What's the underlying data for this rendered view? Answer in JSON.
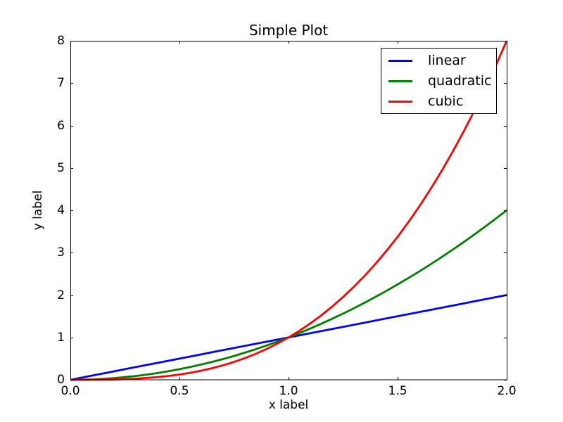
{
  "figure": {
    "background": "#ffffff",
    "spine_color": "#000000",
    "text_color": "#000000"
  },
  "chart_data": {
    "type": "line",
    "title": "Simple Plot",
    "xlabel": "x label",
    "ylabel": "y label",
    "xlim": [
      0.0,
      2.0
    ],
    "ylim": [
      0,
      8
    ],
    "grid": false,
    "x_ticks": [
      "0.0",
      "0.5",
      "1.0",
      "1.5",
      "2.0"
    ],
    "x_tick_values": [
      0,
      0.5,
      1,
      1.5,
      2
    ],
    "y_ticks": [
      "0",
      "1",
      "2",
      "3",
      "4",
      "5",
      "6",
      "7",
      "8"
    ],
    "y_tick_values": [
      0,
      1,
      2,
      3,
      4,
      5,
      6,
      7,
      8
    ],
    "legend": {
      "position": "upper right",
      "entries": [
        "linear",
        "quadratic",
        "cubic"
      ]
    },
    "x": [
      0,
      0.05,
      0.1,
      0.15,
      0.2,
      0.25,
      0.3,
      0.35,
      0.4,
      0.45,
      0.5,
      0.55,
      0.6,
      0.65,
      0.7,
      0.75,
      0.8,
      0.85,
      0.9,
      0.95,
      1,
      1.05,
      1.1,
      1.15,
      1.2,
      1.25,
      1.3,
      1.35,
      1.4,
      1.45,
      1.5,
      1.55,
      1.6,
      1.65,
      1.7,
      1.75,
      1.8,
      1.85,
      1.9,
      1.95,
      2
    ],
    "series": [
      {
        "name": "linear",
        "color": "#0000ff",
        "values": [
          0,
          0.05,
          0.1,
          0.15,
          0.2,
          0.25,
          0.3,
          0.35,
          0.4,
          0.45,
          0.5,
          0.55,
          0.6,
          0.65,
          0.7,
          0.75,
          0.8,
          0.85,
          0.9,
          0.95,
          1,
          1.05,
          1.1,
          1.15,
          1.2,
          1.25,
          1.3,
          1.35,
          1.4,
          1.45,
          1.5,
          1.55,
          1.6,
          1.65,
          1.7,
          1.75,
          1.8,
          1.85,
          1.9,
          1.95,
          2
        ]
      },
      {
        "name": "quadratic",
        "color": "#008000",
        "values": [
          0,
          0.0025,
          0.01,
          0.0225,
          0.04,
          0.0625,
          0.09,
          0.1225,
          0.16,
          0.2025,
          0.25,
          0.3025,
          0.36,
          0.4225,
          0.49,
          0.5625,
          0.64,
          0.7225,
          0.81,
          0.9025,
          1,
          1.1025,
          1.21,
          1.3225,
          1.44,
          1.5625,
          1.69,
          1.8225,
          1.96,
          2.1025,
          2.25,
          2.4025,
          2.56,
          2.7225,
          2.89,
          3.0625,
          3.24,
          3.4225,
          3.61,
          3.8025,
          4
        ]
      },
      {
        "name": "cubic",
        "color": "#ff0000",
        "values": [
          0,
          0.0001,
          0.001,
          0.0034,
          0.008,
          0.0156,
          0.027,
          0.0429,
          0.064,
          0.0911,
          0.125,
          0.1664,
          0.216,
          0.2746,
          0.343,
          0.4219,
          0.512,
          0.6141,
          0.729,
          0.8574,
          1,
          1.1576,
          1.331,
          1.5209,
          1.728,
          1.9531,
          2.197,
          2.4604,
          2.744,
          3.0486,
          3.375,
          3.7239,
          4.096,
          4.4921,
          4.913,
          5.3594,
          5.832,
          6.3316,
          6.859,
          7.4149,
          8
        ]
      }
    ]
  }
}
